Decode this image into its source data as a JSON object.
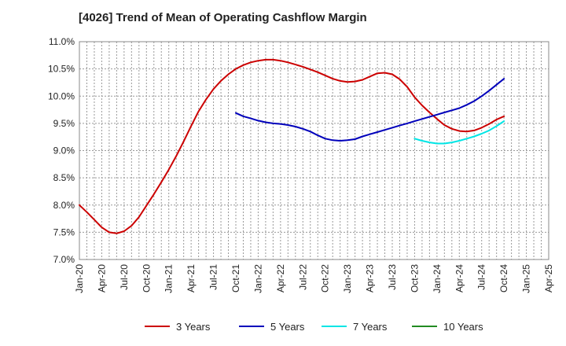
{
  "chart_data": {
    "type": "line",
    "title": "[4026]  Trend of Mean of Operating Cashflow Margin",
    "xlabel": "",
    "ylabel": "",
    "x_ticks": [
      "Jan-20",
      "Apr-20",
      "Jul-20",
      "Oct-20",
      "Jan-21",
      "Apr-21",
      "Jul-21",
      "Oct-21",
      "Jan-22",
      "Apr-22",
      "Jul-22",
      "Oct-22",
      "Jan-23",
      "Apr-23",
      "Jul-23",
      "Oct-23",
      "Jan-24",
      "Apr-24",
      "Jul-24",
      "Oct-24",
      "Jan-25",
      "Apr-25"
    ],
    "y_ticks": [
      "7.0%",
      "7.5%",
      "8.0%",
      "8.5%",
      "9.0%",
      "9.5%",
      "10.0%",
      "10.5%",
      "11.0%"
    ],
    "ylim": [
      7.0,
      11.0
    ],
    "grid": true,
    "legend_position": "bottom",
    "series": [
      {
        "name": "3 Years",
        "color": "#cc0000",
        "x": [
          "2020-01",
          "2020-02",
          "2020-03",
          "2020-04",
          "2020-05",
          "2020-06",
          "2020-07",
          "2020-08",
          "2020-09",
          "2020-10",
          "2020-11",
          "2020-12",
          "2021-01",
          "2021-02",
          "2021-03",
          "2021-04",
          "2021-05",
          "2021-06",
          "2021-07",
          "2021-08",
          "2021-09",
          "2021-10",
          "2021-11",
          "2021-12",
          "2022-01",
          "2022-02",
          "2022-03",
          "2022-04",
          "2022-05",
          "2022-06",
          "2022-07",
          "2022-08",
          "2022-09",
          "2022-10",
          "2022-11",
          "2022-12",
          "2023-01",
          "2023-02",
          "2023-03",
          "2023-04",
          "2023-05",
          "2023-06",
          "2023-07",
          "2023-08",
          "2023-09",
          "2023-10",
          "2023-11",
          "2023-12",
          "2024-01",
          "2024-02",
          "2024-03",
          "2024-04",
          "2024-05",
          "2024-06",
          "2024-07",
          "2024-08",
          "2024-09",
          "2024-10"
        ],
        "values": [
          8.0,
          7.87,
          7.73,
          7.59,
          7.5,
          7.48,
          7.52,
          7.62,
          7.78,
          7.99,
          8.2,
          8.42,
          8.65,
          8.9,
          9.17,
          9.45,
          9.72,
          9.94,
          10.13,
          10.28,
          10.4,
          10.5,
          10.57,
          10.62,
          10.65,
          10.67,
          10.67,
          10.65,
          10.62,
          10.58,
          10.54,
          10.49,
          10.44,
          10.38,
          10.32,
          10.28,
          10.26,
          10.27,
          10.3,
          10.36,
          10.42,
          10.43,
          10.4,
          10.31,
          10.17,
          9.98,
          9.83,
          9.7,
          9.58,
          9.47,
          9.4,
          9.36,
          9.35,
          9.37,
          9.42,
          9.49,
          9.57,
          9.63
        ]
      },
      {
        "name": "5 Years",
        "color": "#0000bb",
        "x": [
          "2021-10",
          "2021-11",
          "2021-12",
          "2022-01",
          "2022-02",
          "2022-03",
          "2022-04",
          "2022-05",
          "2022-06",
          "2022-07",
          "2022-08",
          "2022-09",
          "2022-10",
          "2022-11",
          "2022-12",
          "2023-01",
          "2023-02",
          "2023-03",
          "2023-04",
          "2023-05",
          "2023-06",
          "2023-07",
          "2023-08",
          "2023-09",
          "2023-10",
          "2023-11",
          "2023-12",
          "2024-01",
          "2024-02",
          "2024-03",
          "2024-04",
          "2024-05",
          "2024-06",
          "2024-07",
          "2024-08",
          "2024-09",
          "2024-10"
        ],
        "values": [
          9.69,
          9.63,
          9.59,
          9.55,
          9.52,
          9.5,
          9.49,
          9.47,
          9.44,
          9.4,
          9.35,
          9.28,
          9.22,
          9.19,
          9.18,
          9.19,
          9.21,
          9.26,
          9.3,
          9.34,
          9.38,
          9.42,
          9.46,
          9.5,
          9.54,
          9.58,
          9.62,
          9.66,
          9.7,
          9.74,
          9.78,
          9.84,
          9.91,
          10.0,
          10.1,
          10.21,
          10.32
        ]
      },
      {
        "name": "7 Years",
        "color": "#00e5e5",
        "x": [
          "2023-10",
          "2023-11",
          "2023-12",
          "2024-01",
          "2024-02",
          "2024-03",
          "2024-04",
          "2024-05",
          "2024-06",
          "2024-07",
          "2024-08",
          "2024-09",
          "2024-10"
        ],
        "values": [
          9.22,
          9.18,
          9.15,
          9.13,
          9.13,
          9.15,
          9.18,
          9.22,
          9.26,
          9.31,
          9.37,
          9.45,
          9.54
        ]
      },
      {
        "name": "10 Years",
        "color": "#228b22",
        "x": [],
        "values": []
      }
    ]
  }
}
